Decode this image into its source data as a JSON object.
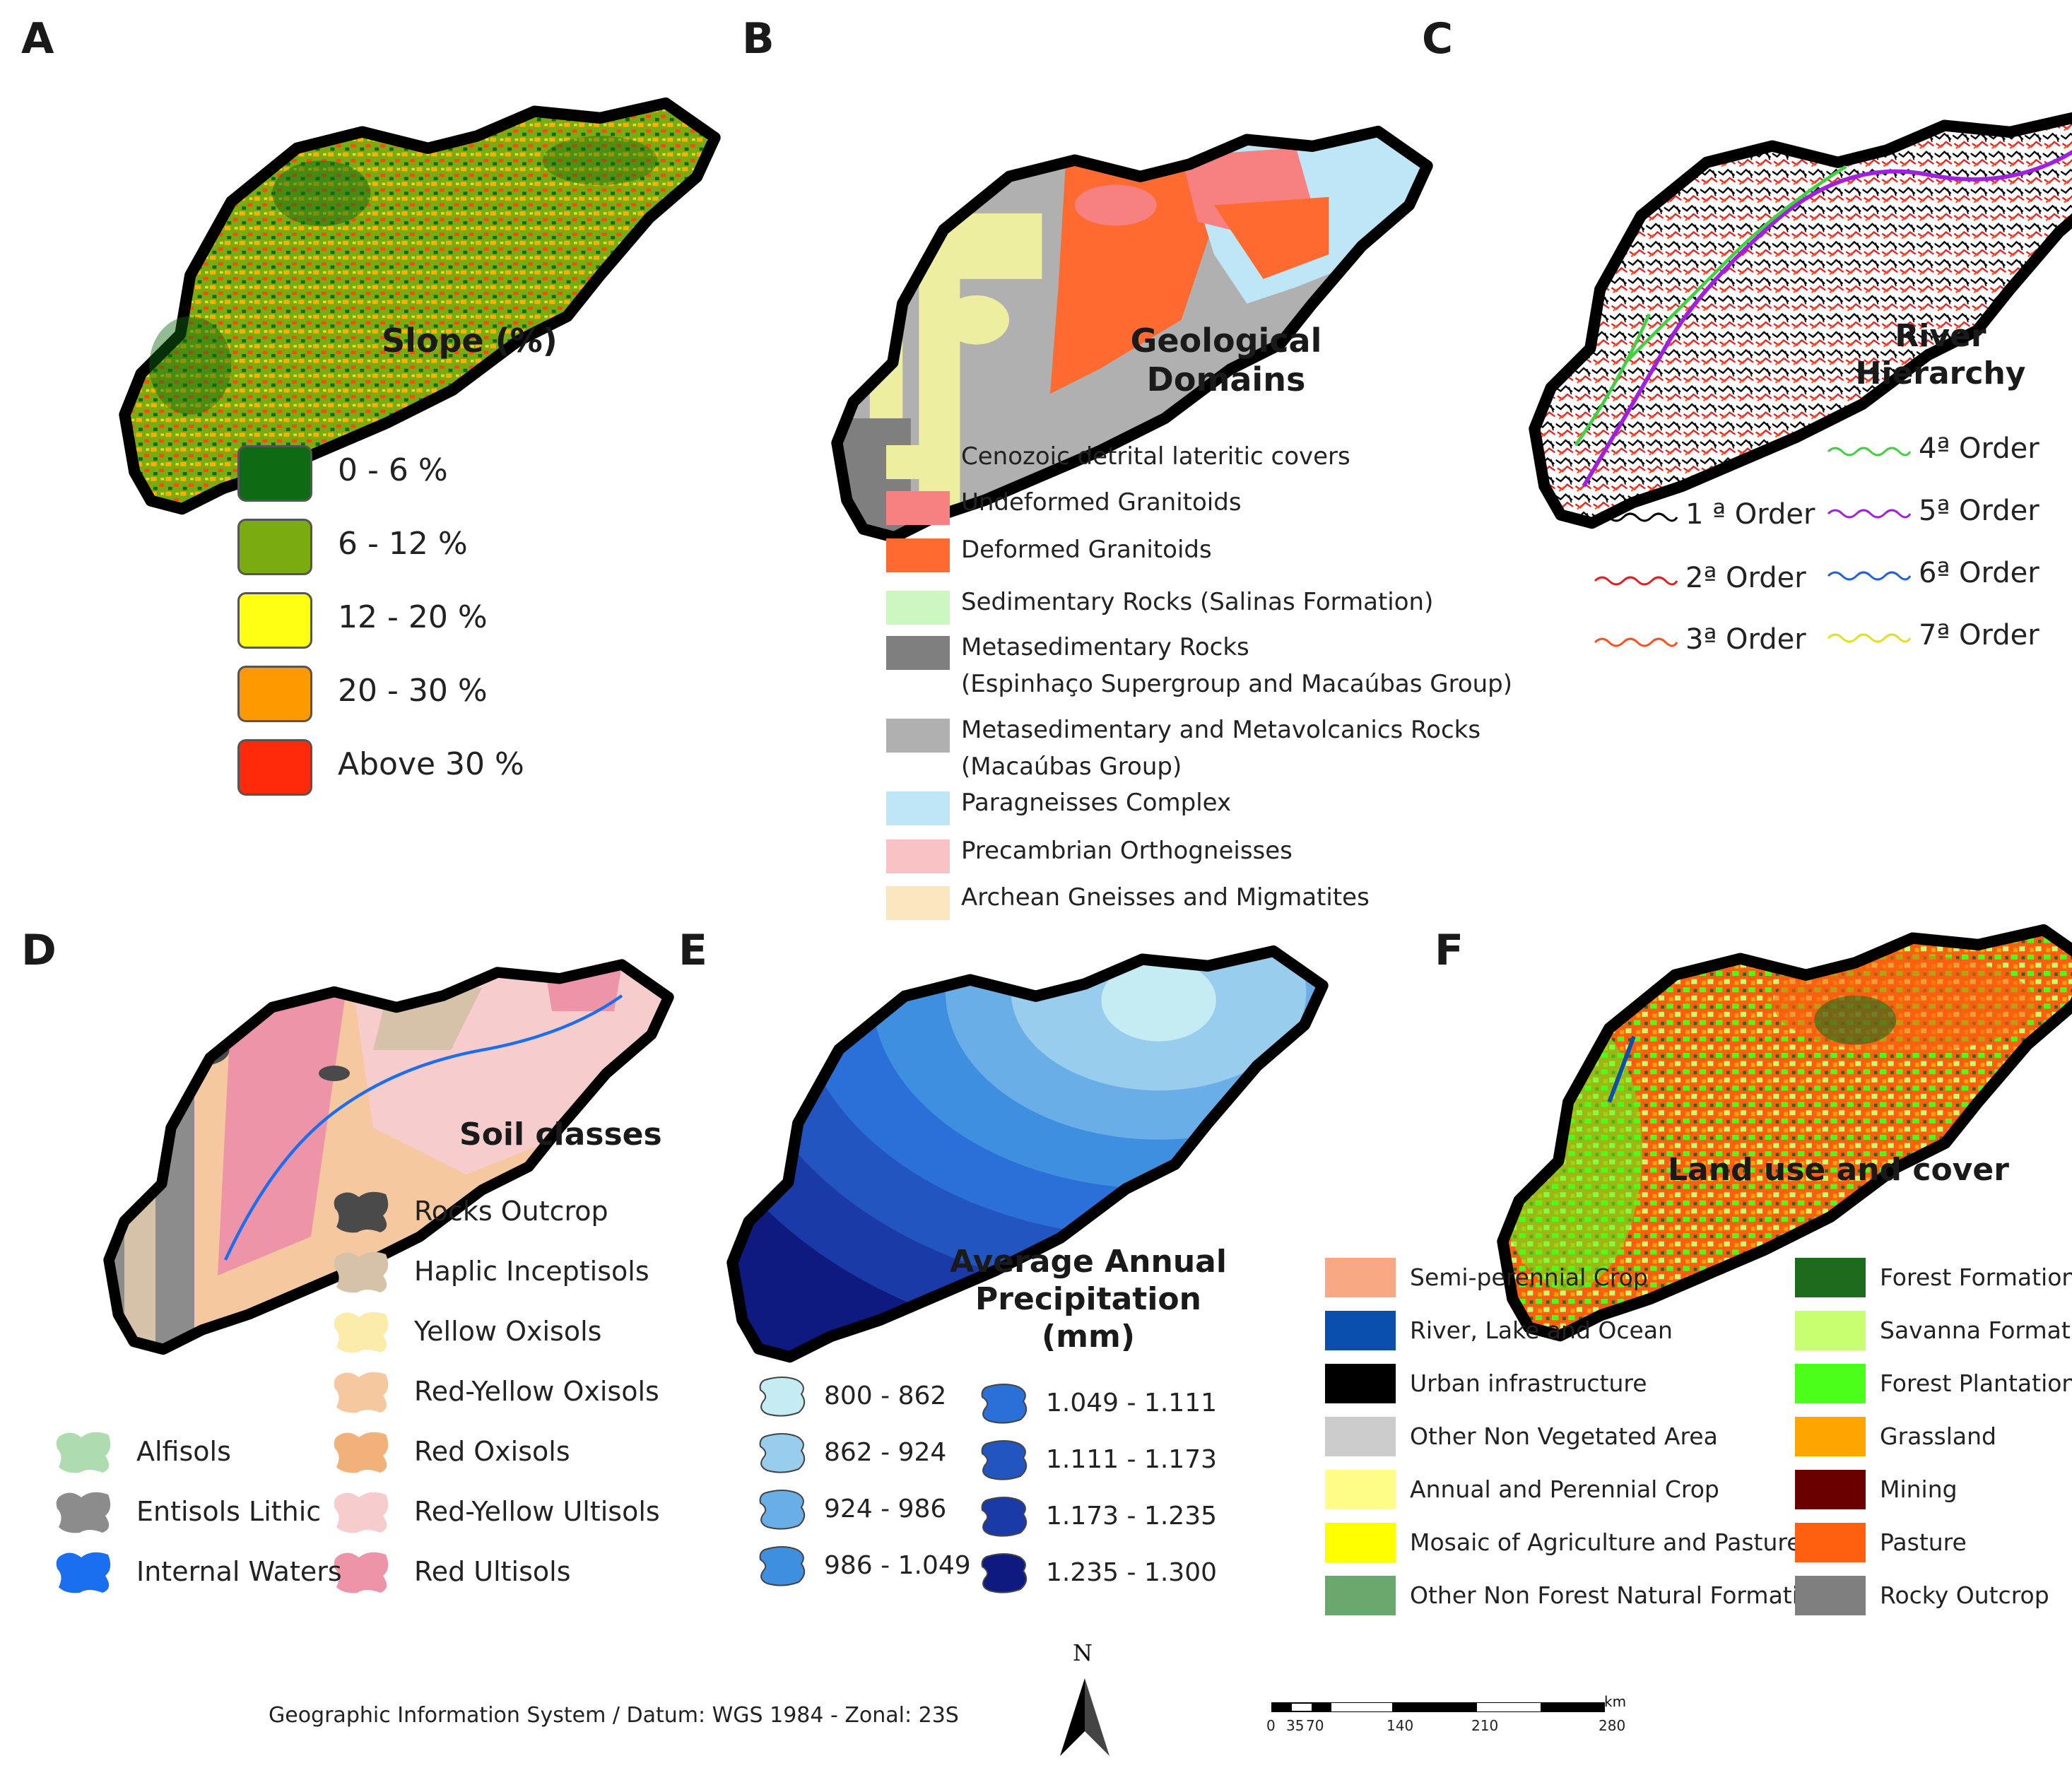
{
  "panels": {
    "a": {
      "letter": "A",
      "title": "Slope (%)",
      "legend": [
        {
          "label": "0 - 6 %",
          "color": "#0f6a14"
        },
        {
          "label": "6 - 12 %",
          "color": "#7aab10"
        },
        {
          "label": "12 - 20 %",
          "color": "#ffff14"
        },
        {
          "label": "20 - 30 %",
          "color": "#ff9900"
        },
        {
          "label": "Above 30 %",
          "color": "#ff2a0a"
        }
      ]
    },
    "b": {
      "letter": "B",
      "title_line1": "Geological",
      "title_line2": "Domains",
      "legend": [
        {
          "label": "Cenozoic detrital lateritic covers",
          "color": "#eeeea0"
        },
        {
          "label": "Undeformed Granitoids",
          "color": "#f78080"
        },
        {
          "label": "Deformed Granitoids",
          "color": "#ff6a30"
        },
        {
          "label": "Sedimentary Rocks (Salinas Formation)",
          "color": "#ccf7c0"
        },
        {
          "label": "Metasedimentary Rocks",
          "label2": "(Espinhaço Supergroup and Macaúbas Group)",
          "color": "#7f7f7f"
        },
        {
          "label": "Metasedimentary and Metavolcanics Rocks",
          "label2": "(Macaúbas Group)",
          "color": "#b0b0b0"
        },
        {
          "label": "Paragneisses Complex",
          "color": "#bee6f7"
        },
        {
          "label": "Precambrian Orthogneisses",
          "color": "#f9c2c4"
        },
        {
          "label": "Archean Gneisses and Migmatites",
          "color": "#fbe6c0"
        }
      ]
    },
    "c": {
      "letter": "C",
      "title": "River Hierarchy",
      "legend": [
        {
          "label": "1 ª Order",
          "color": "#000000"
        },
        {
          "label": "2ª Order",
          "color": "#e02020"
        },
        {
          "label": "3ª Order",
          "color": "#ff5020"
        },
        {
          "label": "4ª Order",
          "color": "#40d040"
        },
        {
          "label": "5ª Order",
          "color": "#a020e0"
        },
        {
          "label": "6ª Order",
          "color": "#2060e0"
        },
        {
          "label": "7ª Order",
          "color": "#e0e020"
        }
      ]
    },
    "d": {
      "letter": "D",
      "title": "Soil classes",
      "legend": [
        {
          "label": "Rocks Outcrop",
          "color": "#4a4a4a"
        },
        {
          "label": "Haplic Inceptisols",
          "color": "#d6c2a8"
        },
        {
          "label": "Yellow Oxisols",
          "color": "#fbecac"
        },
        {
          "label": "Red-Yellow Oxisols",
          "color": "#f5c8a0"
        },
        {
          "label": "Red Oxisols",
          "color": "#f2b07a"
        },
        {
          "label": "Red-Yellow Ultisols",
          "color": "#f7cccc"
        },
        {
          "label": "Red Ultisols",
          "color": "#ee94a8"
        },
        {
          "label": "Alfisols",
          "color": "#aedcb0"
        },
        {
          "label": "Entisols Lithic",
          "color": "#8c8c8c"
        },
        {
          "label": "Internal Waters",
          "color": "#1a6ef0"
        }
      ]
    },
    "e": {
      "letter": "E",
      "title_line1": "Average Annual",
      "title_line2": "Precipitation (mm)",
      "legend": [
        {
          "label": "800 - 862",
          "color": "#c4ecf2"
        },
        {
          "label": "862 - 924",
          "color": "#98cdee"
        },
        {
          "label": "924 - 986",
          "color": "#6aaee8"
        },
        {
          "label": "986 - 1.049",
          "color": "#3f8fe0"
        },
        {
          "label": "1.049 - 1.111",
          "color": "#2a70d8"
        },
        {
          "label": "1.111 - 1.173",
          "color": "#2255c0"
        },
        {
          "label": "1.173 - 1.235",
          "color": "#1a3aa8"
        },
        {
          "label": "1.235 - 1.300",
          "color": "#0e1a80"
        }
      ]
    },
    "f": {
      "letter": "F",
      "title": "Land use and cover",
      "legend": [
        {
          "label": "Semi-perennial Crop",
          "color": "#f8a882"
        },
        {
          "label": "River, Lake and Ocean",
          "color": "#0a4fae"
        },
        {
          "label": "Urban infrastructure",
          "color": "#000000"
        },
        {
          "label": "Other Non Vegetated Area",
          "color": "#cccccc"
        },
        {
          "label": "Annual and Perennial Crop",
          "color": "#fdfd88"
        },
        {
          "label": "Mosaic of Agriculture and Pasture",
          "color": "#ffff00"
        },
        {
          "label": "Other Non Forest Natural Formation",
          "color": "#6aa86e"
        },
        {
          "label": "Forest Formation",
          "color": "#1e6b1e"
        },
        {
          "label": "Savanna Formation",
          "color": "#c8ff70"
        },
        {
          "label": "Forest Plantation",
          "color": "#4cff1a"
        },
        {
          "label": "Grassland",
          "color": "#ffa500"
        },
        {
          "label": "Mining",
          "color": "#6a0000"
        },
        {
          "label": "Pasture",
          "color": "#ff6010"
        },
        {
          "label": "Rocky Outcrop",
          "color": "#7f7f7f"
        }
      ]
    }
  },
  "footer": {
    "gis_text": "Geographic Information System / Datum: WGS 1984 - Zonal: 23S",
    "north_label": "N",
    "scale_unit": "km",
    "scale_ticks": [
      "0",
      "35",
      "70",
      "140",
      "210",
      "280"
    ]
  }
}
